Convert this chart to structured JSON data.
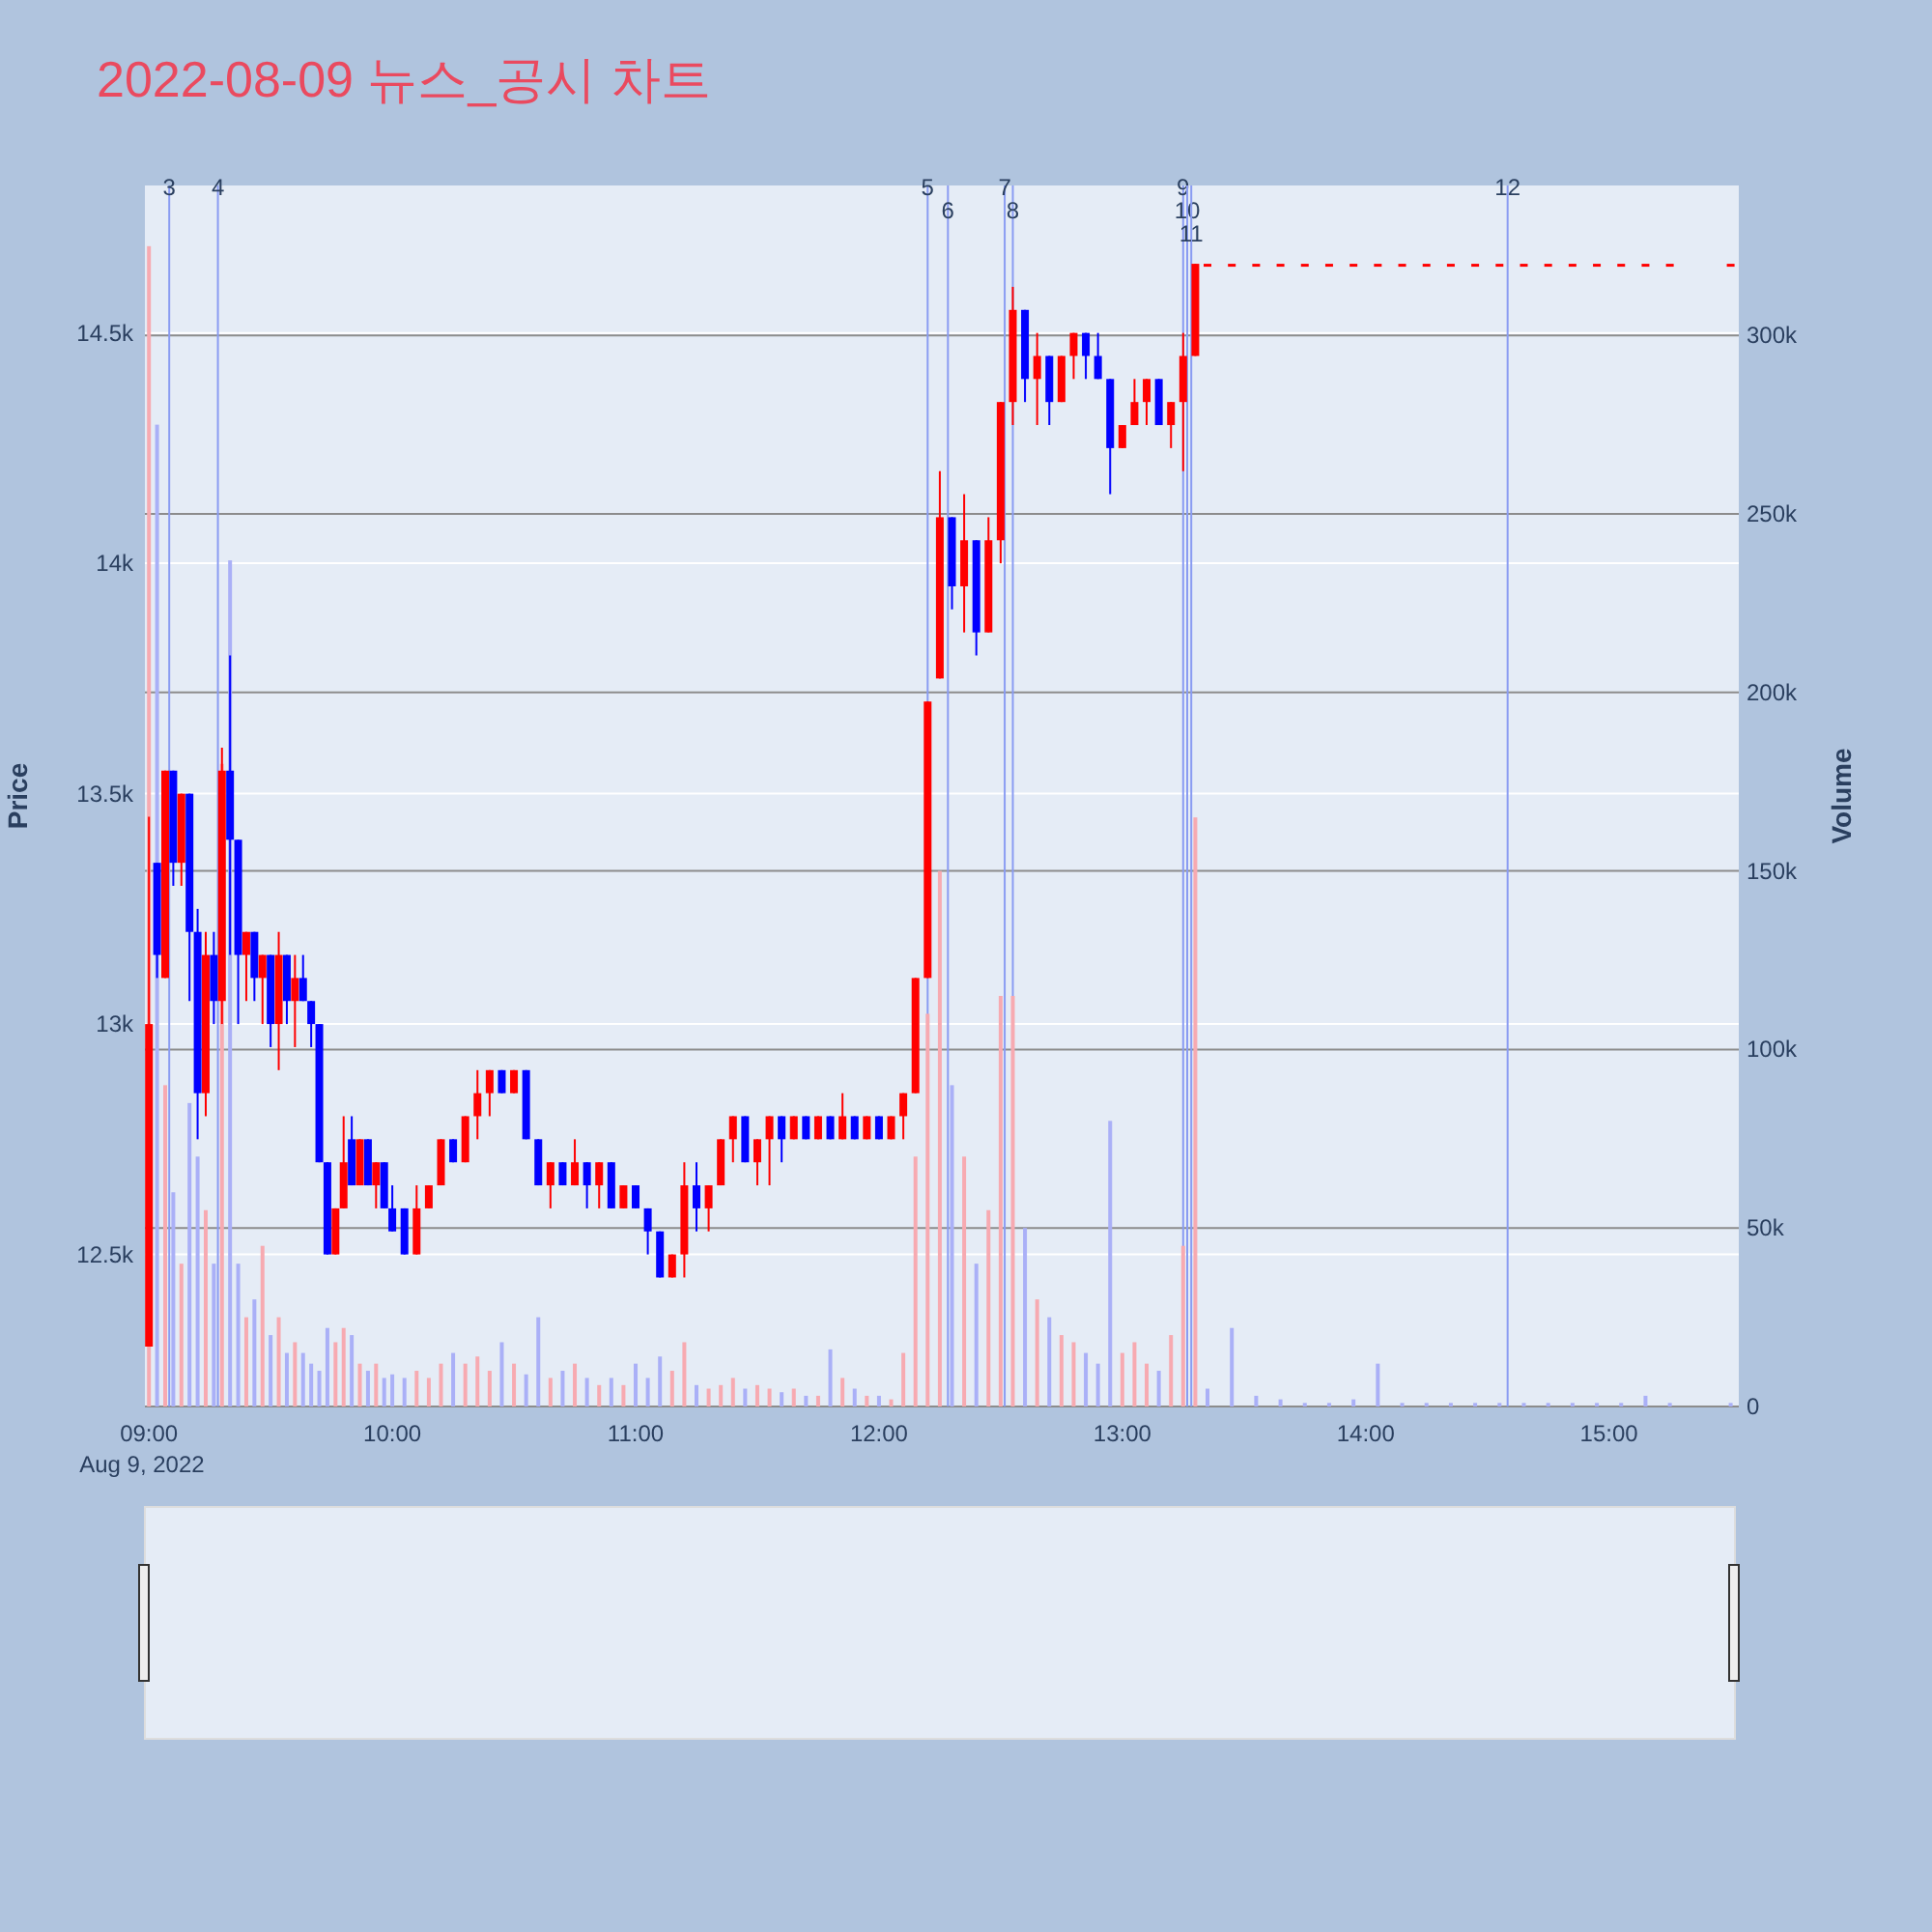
{
  "chart_data": {
    "type": "candlestick",
    "title": "2022-08-09 뉴스_공시 차트",
    "ylabel": "Price",
    "y2label": "Volume",
    "x": [
      "2022-08-09T09:00",
      "2022-08-09T09:02",
      "2022-08-09T09:04",
      "2022-08-09T09:06",
      "2022-08-09T09:08",
      "2022-08-09T09:10",
      "2022-08-09T09:12",
      "2022-08-09T09:14",
      "2022-08-09T09:16",
      "2022-08-09T09:18",
      "2022-08-09T09:20",
      "2022-08-09T09:22",
      "2022-08-09T09:24",
      "2022-08-09T09:26",
      "2022-08-09T09:28",
      "2022-08-09T09:30",
      "2022-08-09T09:32",
      "2022-08-09T09:34",
      "2022-08-09T09:36",
      "2022-08-09T09:38",
      "2022-08-09T09:40",
      "2022-08-09T09:42",
      "2022-08-09T09:44",
      "2022-08-09T09:46",
      "2022-08-09T09:48",
      "2022-08-09T09:50",
      "2022-08-09T09:52",
      "2022-08-09T09:54",
      "2022-08-09T09:56",
      "2022-08-09T09:58",
      "2022-08-09T10:00",
      "2022-08-09T10:03",
      "2022-08-09T10:06",
      "2022-08-09T10:09",
      "2022-08-09T10:12",
      "2022-08-09T10:15",
      "2022-08-09T10:18",
      "2022-08-09T10:21",
      "2022-08-09T10:24",
      "2022-08-09T10:27",
      "2022-08-09T10:30",
      "2022-08-09T10:33",
      "2022-08-09T10:36",
      "2022-08-09T10:39",
      "2022-08-09T10:42",
      "2022-08-09T10:45",
      "2022-08-09T10:48",
      "2022-08-09T10:51",
      "2022-08-09T10:54",
      "2022-08-09T10:57",
      "2022-08-09T11:00",
      "2022-08-09T11:03",
      "2022-08-09T11:06",
      "2022-08-09T11:09",
      "2022-08-09T11:12",
      "2022-08-09T11:15",
      "2022-08-09T11:18",
      "2022-08-09T11:21",
      "2022-08-09T11:24",
      "2022-08-09T11:27",
      "2022-08-09T11:30",
      "2022-08-09T11:33",
      "2022-08-09T11:36",
      "2022-08-09T11:39",
      "2022-08-09T11:42",
      "2022-08-09T11:45",
      "2022-08-09T11:48",
      "2022-08-09T11:51",
      "2022-08-09T11:54",
      "2022-08-09T11:57",
      "2022-08-09T12:00",
      "2022-08-09T12:03",
      "2022-08-09T12:06",
      "2022-08-09T12:09",
      "2022-08-09T12:12",
      "2022-08-09T12:15",
      "2022-08-09T12:18",
      "2022-08-09T12:21",
      "2022-08-09T12:24",
      "2022-08-09T12:27",
      "2022-08-09T12:30",
      "2022-08-09T12:33",
      "2022-08-09T12:36",
      "2022-08-09T12:39",
      "2022-08-09T12:42",
      "2022-08-09T12:45",
      "2022-08-09T12:48",
      "2022-08-09T12:51",
      "2022-08-09T12:54",
      "2022-08-09T12:57",
      "2022-08-09T13:00",
      "2022-08-09T13:03",
      "2022-08-09T13:06",
      "2022-08-09T13:09",
      "2022-08-09T13:12",
      "2022-08-09T13:15",
      "2022-08-09T13:18",
      "2022-08-09T13:21",
      "2022-08-09T13:27",
      "2022-08-09T13:33",
      "2022-08-09T13:39",
      "2022-08-09T13:45",
      "2022-08-09T13:51",
      "2022-08-09T13:57",
      "2022-08-09T14:03",
      "2022-08-09T14:09",
      "2022-08-09T14:15",
      "2022-08-09T14:21",
      "2022-08-09T14:27",
      "2022-08-09T14:33",
      "2022-08-09T14:39",
      "2022-08-09T14:45",
      "2022-08-09T14:51",
      "2022-08-09T14:57",
      "2022-08-09T15:03",
      "2022-08-09T15:09",
      "2022-08-09T15:15",
      "2022-08-09T15:30"
    ],
    "series": [
      {
        "ohlc": [
          [
            12300,
            13450,
            12300,
            13000
          ],
          [
            13350,
            13350,
            13100,
            13150
          ],
          [
            13100,
            13550,
            13100,
            13550
          ],
          [
            13550,
            13550,
            13300,
            13350
          ],
          [
            13350,
            13500,
            13300,
            13500
          ],
          [
            13500,
            13500,
            13050,
            13200
          ],
          [
            13200,
            13250,
            12750,
            12850
          ],
          [
            12850,
            13200,
            12800,
            13150
          ],
          [
            13150,
            13200,
            13000,
            13050
          ],
          [
            13050,
            13600,
            13000,
            13550
          ],
          [
            13550,
            13800,
            13150,
            13400
          ],
          [
            13400,
            13400,
            13000,
            13150
          ],
          [
            13150,
            13200,
            13050,
            13200
          ],
          [
            13200,
            13200,
            13050,
            13100
          ],
          [
            13100,
            13150,
            13000,
            13150
          ],
          [
            13150,
            13150,
            12950,
            13000
          ],
          [
            13000,
            13200,
            12900,
            13150
          ],
          [
            13150,
            13150,
            13000,
            13050
          ],
          [
            13050,
            13150,
            12950,
            13100
          ],
          [
            13100,
            13150,
            13050,
            13050
          ],
          [
            13050,
            13050,
            12950,
            13000
          ],
          [
            13000,
            13000,
            12700,
            12700
          ],
          [
            12700,
            12700,
            12500,
            12500
          ],
          [
            12500,
            12600,
            12500,
            12600
          ],
          [
            12600,
            12800,
            12600,
            12700
          ],
          [
            12750,
            12800,
            12650,
            12650
          ],
          [
            12650,
            12750,
            12650,
            12750
          ],
          [
            12750,
            12750,
            12650,
            12650
          ],
          [
            12650,
            12700,
            12600,
            12700
          ],
          [
            12700,
            12700,
            12600,
            12600
          ],
          [
            12600,
            12650,
            12550,
            12550
          ],
          [
            12600,
            12600,
            12500,
            12500
          ],
          [
            12500,
            12650,
            12500,
            12600
          ],
          [
            12600,
            12650,
            12600,
            12650
          ],
          [
            12650,
            12750,
            12650,
            12750
          ],
          [
            12750,
            12750,
            12700,
            12700
          ],
          [
            12700,
            12800,
            12700,
            12800
          ],
          [
            12800,
            12900,
            12750,
            12850
          ],
          [
            12850,
            12900,
            12800,
            12900
          ],
          [
            12900,
            12900,
            12850,
            12850
          ],
          [
            12850,
            12900,
            12850,
            12900
          ],
          [
            12900,
            12900,
            12750,
            12750
          ],
          [
            12750,
            12750,
            12650,
            12650
          ],
          [
            12650,
            12700,
            12600,
            12700
          ],
          [
            12700,
            12700,
            12650,
            12650
          ],
          [
            12650,
            12750,
            12650,
            12700
          ],
          [
            12700,
            12700,
            12600,
            12650
          ],
          [
            12650,
            12700,
            12600,
            12700
          ],
          [
            12700,
            12700,
            12600,
            12600
          ],
          [
            12600,
            12650,
            12600,
            12650
          ],
          [
            12650,
            12650,
            12600,
            12600
          ],
          [
            12600,
            12600,
            12500,
            12550
          ],
          [
            12550,
            12550,
            12450,
            12450
          ],
          [
            12450,
            12500,
            12450,
            12500
          ],
          [
            12500,
            12700,
            12450,
            12650
          ],
          [
            12650,
            12700,
            12550,
            12600
          ],
          [
            12600,
            12650,
            12550,
            12650
          ],
          [
            12650,
            12750,
            12650,
            12750
          ],
          [
            12750,
            12800,
            12700,
            12800
          ],
          [
            12800,
            12800,
            12700,
            12700
          ],
          [
            12700,
            12750,
            12650,
            12750
          ],
          [
            12750,
            12800,
            12650,
            12800
          ],
          [
            12800,
            12800,
            12700,
            12750
          ],
          [
            12750,
            12800,
            12750,
            12800
          ],
          [
            12800,
            12800,
            12750,
            12750
          ],
          [
            12750,
            12800,
            12750,
            12800
          ],
          [
            12800,
            12800,
            12750,
            12750
          ],
          [
            12750,
            12850,
            12750,
            12800
          ],
          [
            12800,
            12800,
            12750,
            12750
          ],
          [
            12750,
            12800,
            12750,
            12800
          ],
          [
            12800,
            12800,
            12750,
            12750
          ],
          [
            12750,
            12800,
            12750,
            12800
          ],
          [
            12800,
            12850,
            12750,
            12850
          ],
          [
            12850,
            13100,
            12850,
            13100
          ],
          [
            13100,
            13700,
            13100,
            13700
          ],
          [
            13750,
            14200,
            13750,
            14100
          ],
          [
            14100,
            14100,
            13900,
            13950
          ],
          [
            13950,
            14150,
            13850,
            14050
          ],
          [
            14050,
            14050,
            13800,
            13850
          ],
          [
            13850,
            14100,
            13850,
            14050
          ],
          [
            14050,
            14350,
            14000,
            14350
          ],
          [
            14350,
            14600,
            14300,
            14550
          ],
          [
            14550,
            14550,
            14350,
            14400
          ],
          [
            14400,
            14500,
            14300,
            14450
          ],
          [
            14450,
            14450,
            14300,
            14350
          ],
          [
            14350,
            14450,
            14350,
            14450
          ],
          [
            14450,
            14500,
            14400,
            14500
          ],
          [
            14500,
            14500,
            14400,
            14450
          ],
          [
            14450,
            14500,
            14400,
            14400
          ],
          [
            14400,
            14400,
            14150,
            14250
          ],
          [
            14250,
            14300,
            14250,
            14300
          ],
          [
            14300,
            14400,
            14300,
            14350
          ],
          [
            14350,
            14400,
            14300,
            14400
          ],
          [
            14400,
            14400,
            14300,
            14300
          ],
          [
            14300,
            14350,
            14250,
            14350
          ],
          [
            14350,
            14500,
            14200,
            14450
          ],
          [
            14450,
            14650,
            14450,
            14650
          ],
          [
            14650,
            14650,
            14650,
            14650
          ],
          [
            14650,
            14650,
            14650,
            14650
          ],
          [
            14650,
            14650,
            14650,
            14650
          ],
          [
            14650,
            14650,
            14650,
            14650
          ],
          [
            14650,
            14650,
            14650,
            14650
          ],
          [
            14650,
            14650,
            14650,
            14650
          ],
          [
            14650,
            14650,
            14650,
            14650
          ],
          [
            14650,
            14650,
            14650,
            14650
          ],
          [
            14650,
            14650,
            14650,
            14650
          ],
          [
            14650,
            14650,
            14650,
            14650
          ],
          [
            14650,
            14650,
            14650,
            14650
          ],
          [
            14650,
            14650,
            14650,
            14650
          ],
          [
            14650,
            14650,
            14650,
            14650
          ],
          [
            14650,
            14650,
            14650,
            14650
          ],
          [
            14650,
            14650,
            14650,
            14650
          ],
          [
            14650,
            14650,
            14650,
            14650
          ],
          [
            14650,
            14650,
            14650,
            14650
          ],
          [
            14650,
            14650,
            14650,
            14650
          ],
          [
            14650,
            14650,
            14650,
            14650
          ],
          [
            14650,
            14650,
            14650,
            14650
          ],
          [
            14650,
            14650,
            14650,
            14650
          ]
        ],
        "colors": [
          "#ff0000",
          "#0000ff",
          "#ff0000",
          "#0000ff",
          "#ff0000",
          "#0000ff",
          "#0000ff",
          "#ff0000",
          "#0000ff",
          "#ff0000",
          "#0000ff",
          "#0000ff",
          "#ff0000",
          "#0000ff",
          "#ff0000",
          "#0000ff",
          "#ff0000",
          "#0000ff",
          "#ff0000",
          "#0000ff",
          "#0000ff",
          "#0000ff",
          "#0000ff",
          "#ff0000",
          "#ff0000",
          "#0000ff",
          "#ff0000",
          "#0000ff",
          "#ff0000",
          "#0000ff",
          "#0000ff",
          "#0000ff",
          "#ff0000",
          "#ff0000",
          "#ff0000",
          "#0000ff",
          "#ff0000",
          "#ff0000",
          "#ff0000",
          "#0000ff",
          "#ff0000",
          "#0000ff",
          "#0000ff",
          "#ff0000",
          "#0000ff",
          "#ff0000",
          "#0000ff",
          "#ff0000",
          "#0000ff",
          "#ff0000",
          "#0000ff",
          "#0000ff",
          "#0000ff",
          "#ff0000",
          "#ff0000",
          "#0000ff",
          "#ff0000",
          "#ff0000",
          "#ff0000",
          "#0000ff",
          "#ff0000",
          "#ff0000",
          "#0000ff",
          "#ff0000",
          "#0000ff",
          "#ff0000",
          "#0000ff",
          "#ff0000",
          "#0000ff",
          "#ff0000",
          "#0000ff",
          "#ff0000",
          "#ff0000",
          "#ff0000",
          "#ff0000",
          "#ff0000",
          "#0000ff",
          "#ff0000",
          "#0000ff",
          "#ff0000",
          "#ff0000",
          "#ff0000",
          "#0000ff",
          "#ff0000",
          "#0000ff",
          "#ff0000",
          "#ff0000",
          "#0000ff",
          "#0000ff",
          "#0000ff",
          "#ff0000",
          "#ff0000",
          "#ff0000",
          "#0000ff",
          "#ff0000",
          "#ff0000",
          "#ff0000",
          "#ff0000",
          "#ff0000",
          "#ff0000",
          "#ff0000",
          "#ff0000",
          "#ff0000",
          "#ff0000",
          "#ff0000",
          "#ff0000",
          "#ff0000",
          "#ff0000",
          "#ff0000",
          "#ff0000",
          "#ff0000",
          "#ff0000",
          "#ff0000",
          "#ff0000",
          "#ff0000",
          "#ff0000",
          "#ff0000",
          "#ff0000"
        ]
      },
      {
        "type": "bar",
        "axis": "y2",
        "values": [
          325000,
          275000,
          90000,
          60000,
          40000,
          85000,
          70000,
          55000,
          40000,
          180000,
          237000,
          40000,
          25000,
          30000,
          45000,
          20000,
          25000,
          15000,
          18000,
          15000,
          12000,
          10000,
          22000,
          18000,
          22000,
          20000,
          12000,
          10000,
          12000,
          8000,
          9000,
          8000,
          10000,
          8000,
          12000,
          15000,
          12000,
          14000,
          10000,
          18000,
          12000,
          9000,
          25000,
          8000,
          10000,
          12000,
          8000,
          6000,
          8000,
          6000,
          12000,
          8000,
          14000,
          10000,
          18000,
          6000,
          5000,
          6000,
          8000,
          5000,
          6000,
          5000,
          4000,
          5000,
          3000,
          3000,
          16000,
          8000,
          5000,
          3000,
          3000,
          2000,
          15000,
          70000,
          110000,
          150000,
          90000,
          70000,
          40000,
          55000,
          115000,
          115000,
          50000,
          30000,
          25000,
          20000,
          18000,
          15000,
          12000,
          80000,
          15000,
          18000,
          12000,
          10000,
          20000,
          45000,
          165000,
          5000,
          22000,
          3000,
          2000,
          1000,
          1000,
          2000,
          12000,
          1000,
          1000,
          1000,
          1000,
          1000,
          1000,
          1000,
          1000,
          1000,
          1000,
          3000,
          1000,
          1000
        ],
        "colors": [
          "#f7aab1",
          "#aab0f7",
          "#f7aab1",
          "#aab0f7",
          "#f7aab1",
          "#aab0f7",
          "#aab0f7",
          "#f7aab1",
          "#aab0f7",
          "#f7aab1",
          "#aab0f7",
          "#aab0f7",
          "#f7aab1",
          "#aab0f7",
          "#f7aab1",
          "#aab0f7",
          "#f7aab1",
          "#aab0f7",
          "#f7aab1",
          "#aab0f7",
          "#aab0f7",
          "#aab0f7",
          "#aab0f7",
          "#f7aab1",
          "#f7aab1",
          "#aab0f7",
          "#f7aab1",
          "#aab0f7",
          "#f7aab1",
          "#aab0f7",
          "#aab0f7",
          "#aab0f7",
          "#f7aab1",
          "#f7aab1",
          "#f7aab1",
          "#aab0f7",
          "#f7aab1",
          "#f7aab1",
          "#f7aab1",
          "#aab0f7",
          "#f7aab1",
          "#aab0f7",
          "#aab0f7",
          "#f7aab1",
          "#aab0f7",
          "#f7aab1",
          "#aab0f7",
          "#f7aab1",
          "#aab0f7",
          "#f7aab1",
          "#aab0f7",
          "#aab0f7",
          "#aab0f7",
          "#f7aab1",
          "#f7aab1",
          "#aab0f7",
          "#f7aab1",
          "#f7aab1",
          "#f7aab1",
          "#aab0f7",
          "#f7aab1",
          "#f7aab1",
          "#aab0f7",
          "#f7aab1",
          "#aab0f7",
          "#f7aab1",
          "#aab0f7",
          "#f7aab1",
          "#aab0f7",
          "#f7aab1",
          "#aab0f7",
          "#f7aab1",
          "#f7aab1",
          "#f7aab1",
          "#f7aab1",
          "#f7aab1",
          "#aab0f7",
          "#f7aab1",
          "#aab0f7",
          "#f7aab1",
          "#f7aab1",
          "#f7aab1",
          "#aab0f7",
          "#f7aab1",
          "#aab0f7",
          "#f7aab1",
          "#f7aab1",
          "#aab0f7",
          "#aab0f7",
          "#aab0f7",
          "#f7aab1",
          "#f7aab1",
          "#f7aab1",
          "#aab0f7",
          "#f7aab1",
          "#f7aab1",
          "#f7aab1",
          "#aab0f7",
          "#aab0f7",
          "#aab0f7",
          "#aab0f7",
          "#aab0f7",
          "#aab0f7",
          "#aab0f7",
          "#aab0f7",
          "#aab0f7",
          "#aab0f7",
          "#aab0f7",
          "#aab0f7",
          "#aab0f7",
          "#aab0f7",
          "#aab0f7",
          "#aab0f7",
          "#aab0f7",
          "#aab0f7",
          "#aab0f7",
          "#aab0f7",
          "#aab0f7"
        ]
      }
    ],
    "xlim": [
      "2022-08-09T08:59",
      "2022-08-09T15:32"
    ],
    "xticks": [
      {
        "value": "2022-08-09T09:00",
        "label": "09:00\nAug 9, 2022"
      },
      {
        "value": "2022-08-09T10:00",
        "label": "10:00"
      },
      {
        "value": "2022-08-09T11:00",
        "label": "11:00"
      },
      {
        "value": "2022-08-09T12:00",
        "label": "12:00"
      },
      {
        "value": "2022-08-09T13:00",
        "label": "13:00"
      },
      {
        "value": "2022-08-09T14:00",
        "label": "14:00"
      },
      {
        "value": "2022-08-09T15:00",
        "label": "15:00"
      }
    ],
    "ylim": [
      12170,
      14820
    ],
    "yticks": [
      {
        "value": 12500,
        "label": "12.5k"
      },
      {
        "value": 13000,
        "label": "13k"
      },
      {
        "value": 13500,
        "label": "13.5k"
      },
      {
        "value": 14000,
        "label": "14k"
      },
      {
        "value": 14500,
        "label": "14.5k"
      }
    ],
    "y2lim": [
      0,
      342000
    ],
    "y2ticks": [
      0,
      {
        "value": 50000,
        "label": "50k"
      },
      {
        "value": 100000,
        "label": "100k"
      },
      {
        "value": 150000,
        "label": "150k"
      },
      {
        "value": 200000,
        "label": "200k"
      },
      {
        "value": 250000,
        "label": "250k"
      },
      {
        "value": 300000,
        "label": "300k"
      }
    ],
    "grid": "y",
    "ref_lines": [
      {
        "axis": "x",
        "value": "2022-08-09T09:05",
        "label": "3",
        "color": "#8a9cf2"
      },
      {
        "axis": "x",
        "value": "2022-08-09T09:17",
        "label": "4",
        "color": "#8a9cf2"
      },
      {
        "axis": "x",
        "value": "2022-08-09T12:12",
        "label": "5",
        "color": "#8a9cf2"
      },
      {
        "axis": "x",
        "value": "2022-08-09T12:17",
        "label": "6",
        "color": "#8a9cf2"
      },
      {
        "axis": "x",
        "value": "2022-08-09T12:31",
        "label": "7",
        "color": "#8a9cf2"
      },
      {
        "axis": "x",
        "value": "2022-08-09T12:33",
        "label": "8",
        "color": "#8a9cf2"
      },
      {
        "axis": "x",
        "value": "2022-08-09T13:15",
        "label": "9",
        "color": "#8a9cf2"
      },
      {
        "axis": "x",
        "value": "2022-08-09T13:16",
        "label": "10",
        "color": "#8a9cf2"
      },
      {
        "axis": "x",
        "value": "2022-08-09T13:17",
        "label": "11",
        "color": "#8a9cf2"
      },
      {
        "axis": "x",
        "value": "2022-08-09T14:35",
        "label": "12",
        "color": "#8a9cf2"
      }
    ]
  }
}
